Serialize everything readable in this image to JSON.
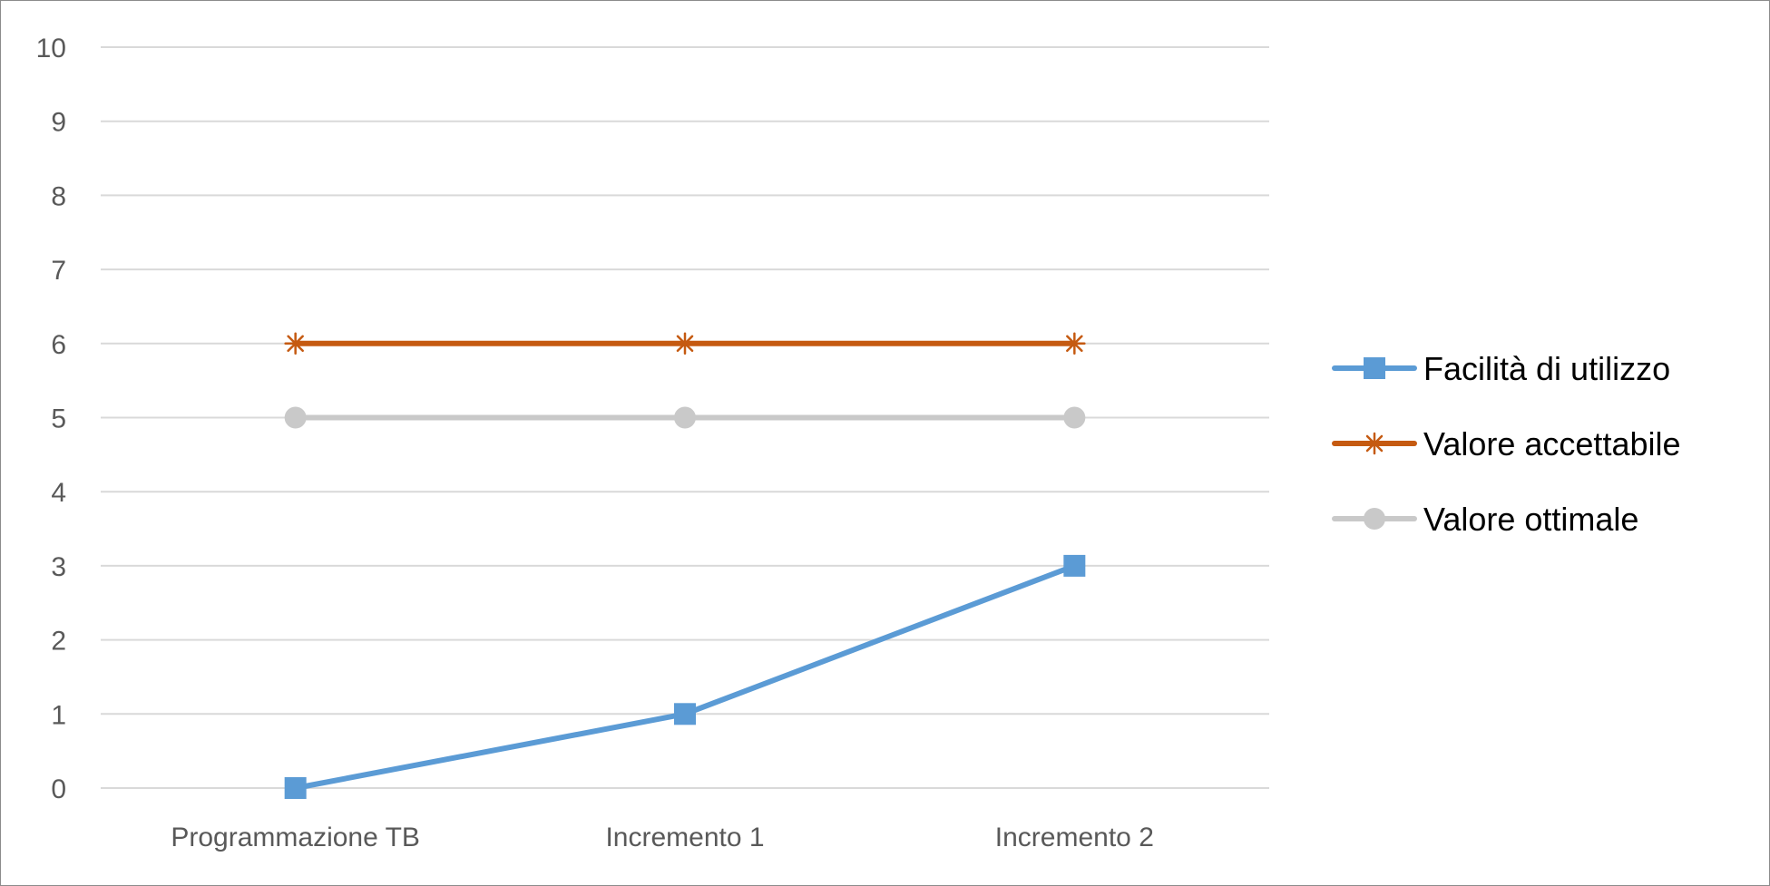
{
  "chart_data": {
    "type": "line",
    "categories": [
      "Programmazione TB",
      "Incremento 1",
      "Incremento 2"
    ],
    "series": [
      {
        "name": "Facilità di utilizzo",
        "values": [
          0,
          1,
          3
        ],
        "color": "#5b9bd5",
        "marker": "square"
      },
      {
        "name": "Valore accettabile",
        "values": [
          6,
          6,
          6
        ],
        "color": "#c55a11",
        "marker": "star"
      },
      {
        "name": "Valore ottimale",
        "values": [
          5,
          5,
          5
        ],
        "color": "#c9c9c9",
        "marker": "circle"
      }
    ],
    "yticks": [
      "0",
      "1",
      "2",
      "3",
      "4",
      "5",
      "6",
      "7",
      "8",
      "9",
      "10"
    ],
    "ylim": [
      0,
      10
    ],
    "grid": true,
    "legend_position": "right"
  }
}
